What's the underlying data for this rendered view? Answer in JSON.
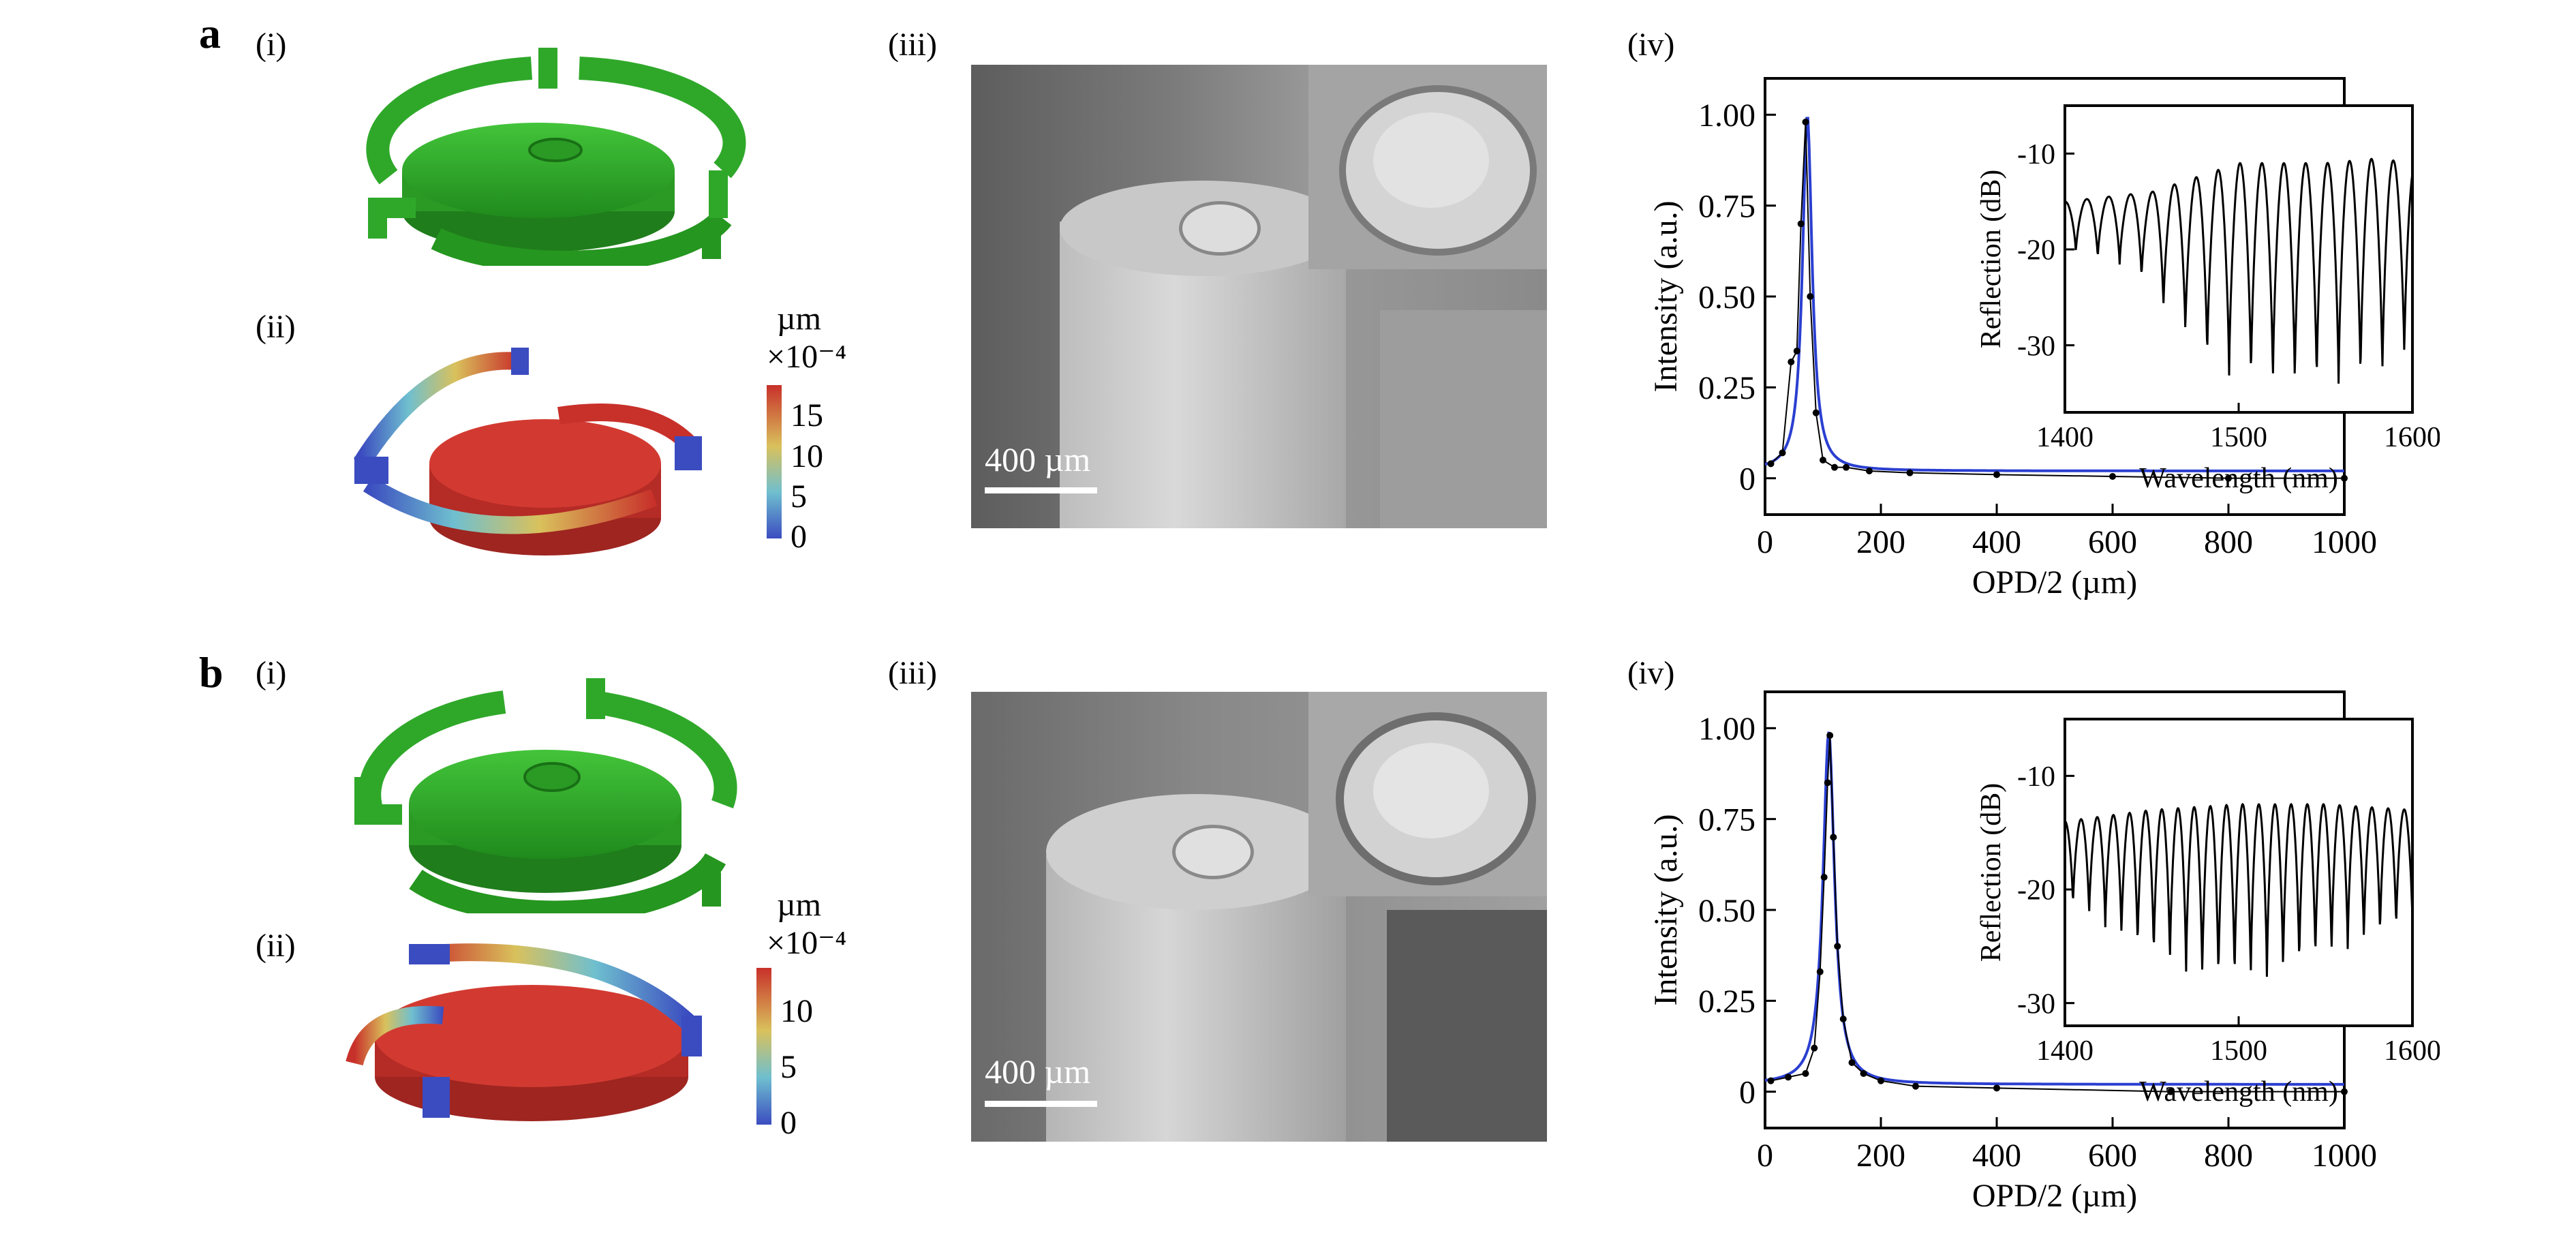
{
  "rows": [
    {
      "letter": "a",
      "labels": {
        "i": "(i)",
        "ii": "(ii)",
        "iii": "(iii)",
        "iv": "(iv)"
      },
      "colorbar": {
        "unit": "µm",
        "scale": "×10⁻⁴",
        "ticks": [
          "15",
          "10",
          "5",
          "0"
        ],
        "tick_values": [
          15,
          10,
          5,
          0
        ],
        "max": 19
      },
      "sem": {
        "scale_label": "400 µm"
      },
      "main_plot": {
        "xlabel": "OPD/2 (µm)",
        "ylabel": "Intensity (a.u.)",
        "xticks": [
          "0",
          "200",
          "400",
          "600",
          "800",
          "1000"
        ],
        "yticks": [
          "0",
          "0.25",
          "0.50",
          "0.75",
          "1.00"
        ]
      },
      "inset_plot": {
        "xlabel": "Wavelength (nm)",
        "ylabel": "Reflection (dB)",
        "xticks": [
          "1400",
          "1500",
          "1600"
        ],
        "yticks": [
          "-10",
          "-20",
          "-30"
        ]
      }
    },
    {
      "letter": "b",
      "labels": {
        "i": "(i)",
        "ii": "(ii)",
        "iii": "(iii)",
        "iv": "(iv)"
      },
      "colorbar": {
        "unit": "µm",
        "scale": "×10⁻⁴",
        "ticks": [
          "10",
          "5",
          "0"
        ],
        "tick_values": [
          10,
          5,
          0
        ],
        "max": 14
      },
      "sem": {
        "scale_label": "400 µm"
      },
      "main_plot": {
        "xlabel": "OPD/2 (µm)",
        "ylabel": "Intensity (a.u.)",
        "xticks": [
          "0",
          "200",
          "400",
          "600",
          "800",
          "1000"
        ],
        "yticks": [
          "0",
          "0.25",
          "0.50",
          "0.75",
          "1.00"
        ]
      },
      "inset_plot": {
        "xlabel": "Wavelength (nm)",
        "ylabel": "Reflection (dB)",
        "xticks": [
          "1400",
          "1500",
          "1600"
        ],
        "yticks": [
          "-10",
          "-20",
          "-30"
        ]
      }
    }
  ],
  "colors": {
    "model_green": "#2fa82a",
    "stress_red": "#c8302a",
    "fit_blue": "#2a3fd0",
    "data_black": "#000000"
  },
  "chart_data": [
    {
      "type": "line",
      "xlim": [
        0,
        1000
      ],
      "ylim": [
        -0.1,
        1.1
      ],
      "series": [
        {
          "role": "fit",
          "peak_x": 73,
          "peak_y": 1.0,
          "width": 10,
          "baseline": 0.02
        },
        {
          "role": "data",
          "points": [
            [
              10,
              0.04
            ],
            [
              30,
              0.07
            ],
            [
              45,
              0.32
            ],
            [
              55,
              0.35
            ],
            [
              62,
              0.7
            ],
            [
              70,
              0.98
            ],
            [
              78,
              0.5
            ],
            [
              88,
              0.18
            ],
            [
              100,
              0.05
            ],
            [
              120,
              0.03
            ],
            [
              140,
              0.03
            ],
            [
              180,
              0.02
            ],
            [
              250,
              0.015
            ],
            [
              400,
              0.01
            ],
            [
              600,
              0.005
            ],
            [
              800,
              0.0
            ],
            [
              1000,
              0.0
            ]
          ]
        }
      ]
    },
    {
      "type": "line",
      "xlim": [
        1400,
        1600
      ],
      "ylim": [
        -37,
        -5
      ],
      "fringe_period_nm": 12.6,
      "envelope_top": [
        [
          1400,
          -15
        ],
        [
          1450,
          -14
        ],
        [
          1500,
          -11
        ],
        [
          1550,
          -11
        ],
        [
          1580,
          -10.5
        ],
        [
          1600,
          -11
        ]
      ],
      "envelope_bottom": [
        [
          1400,
          -20
        ],
        [
          1440,
          -22
        ],
        [
          1460,
          -27
        ],
        [
          1490,
          -33
        ],
        [
          1520,
          -34
        ],
        [
          1560,
          -34
        ],
        [
          1590,
          -33
        ],
        [
          1600,
          -30
        ]
      ]
    },
    {
      "type": "line",
      "xlim": [
        0,
        1000
      ],
      "ylim": [
        -0.1,
        1.1
      ],
      "series": [
        {
          "role": "fit",
          "peak_x": 110,
          "peak_y": 0.99,
          "width": 12,
          "baseline": 0.02
        },
        {
          "role": "data",
          "points": [
            [
              10,
              0.03
            ],
            [
              40,
              0.04
            ],
            [
              70,
              0.05
            ],
            [
              85,
              0.12
            ],
            [
              95,
              0.33
            ],
            [
              102,
              0.59
            ],
            [
              108,
              0.85
            ],
            [
              112,
              0.98
            ],
            [
              118,
              0.7
            ],
            [
              125,
              0.4
            ],
            [
              135,
              0.2
            ],
            [
              150,
              0.08
            ],
            [
              170,
              0.05
            ],
            [
              200,
              0.03
            ],
            [
              260,
              0.015
            ],
            [
              400,
              0.01
            ],
            [
              700,
              0.0
            ],
            [
              1000,
              0.0
            ]
          ]
        }
      ]
    },
    {
      "type": "line",
      "xlim": [
        1400,
        1600
      ],
      "ylim": [
        -32,
        -5
      ],
      "fringe_period_nm": 9.3,
      "envelope_top": [
        [
          1400,
          -14
        ],
        [
          1450,
          -13
        ],
        [
          1500,
          -12.5
        ],
        [
          1550,
          -12.5
        ],
        [
          1600,
          -13
        ]
      ],
      "envelope_bottom": [
        [
          1400,
          -21
        ],
        [
          1440,
          -25
        ],
        [
          1480,
          -28
        ],
        [
          1510,
          -28
        ],
        [
          1550,
          -26
        ],
        [
          1600,
          -23
        ]
      ]
    }
  ]
}
